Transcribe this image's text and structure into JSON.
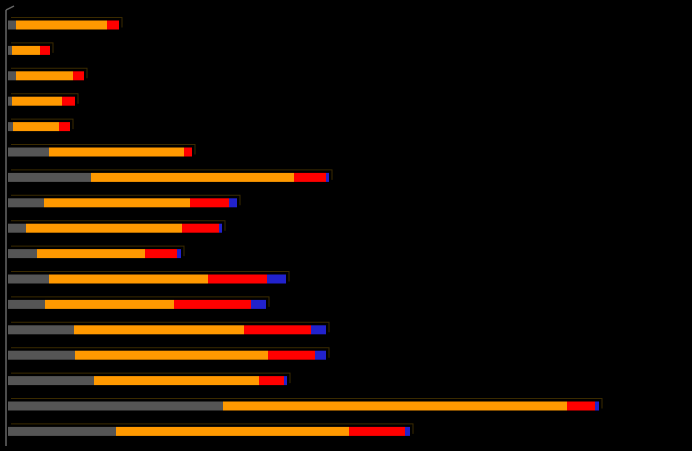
{
  "chart_data": {
    "type": "bar",
    "orientation": "horizontal",
    "stacked": true,
    "title": "",
    "xlabel": "",
    "ylabel": "",
    "legend": "none",
    "grid": false,
    "categories": [
      "",
      "",
      "",
      "",
      "",
      "",
      "",
      "",
      "",
      "",
      "",
      "",
      "",
      "",
      "",
      "",
      ""
    ],
    "series": [
      {
        "color": "#555555",
        "values": [
          8,
          4,
          8,
          4,
          5,
          41,
          83,
          36,
          18,
          29,
          41,
          37,
          66,
          67,
          86,
          215,
          108
        ]
      },
      {
        "color": "#ff9900",
        "values": [
          91,
          28,
          57,
          50,
          46,
          135,
          203,
          146,
          156,
          108,
          159,
          129,
          170,
          193,
          165,
          344,
          233
        ]
      },
      {
        "color": "#ff0000",
        "values": [
          12,
          10,
          11,
          13,
          11,
          8,
          32,
          39,
          37,
          32,
          59,
          77,
          67,
          47,
          25,
          28,
          56
        ]
      },
      {
        "color": "#2222cc",
        "values": [
          0,
          0,
          0,
          0,
          0,
          0,
          3,
          8,
          3,
          4,
          19,
          15,
          15,
          11,
          3,
          4,
          5
        ]
      }
    ]
  }
}
